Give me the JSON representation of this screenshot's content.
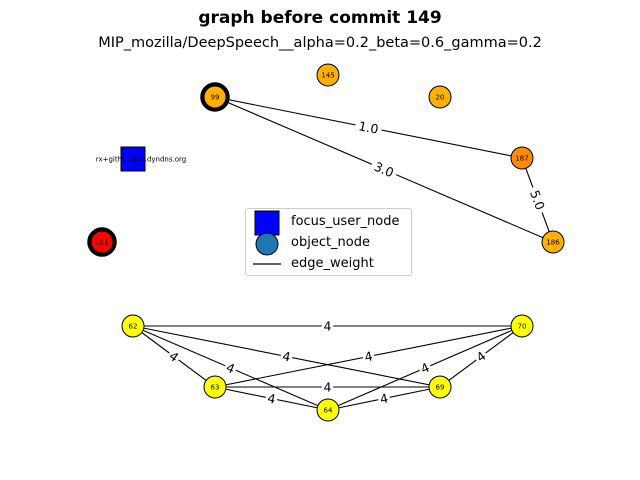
{
  "title": "graph before commit 149",
  "subtitle": "MIP_mozilla/DeepSpeech__alpha=0.2_beta=0.6_gamma=0.2",
  "colors": {
    "focus_user": "#0000ff",
    "object_node": "#1f77b4",
    "red": "#ff0000",
    "orange": "#ff8c00",
    "amber": "#ffb000",
    "yellow": "#ffff00",
    "edge": "#000000",
    "highlight_ring": "#000000"
  },
  "legend": {
    "items": [
      {
        "label": "focus_user_node",
        "icon": "blue-square"
      },
      {
        "label": "object_node",
        "icon": "blue-circle"
      },
      {
        "label": "edge_weight",
        "icon": "black-line"
      }
    ]
  },
  "nodes": [
    {
      "id": "145",
      "label": "145",
      "fill": "#ffb000",
      "ring": false
    },
    {
      "id": "20",
      "label": "20",
      "fill": "#ffb000",
      "ring": false
    },
    {
      "id": "99",
      "label": "99",
      "fill": "#ffb000",
      "ring": true
    },
    {
      "id": "187",
      "label": "187",
      "fill": "#ff8c00",
      "ring": false
    },
    {
      "id": "186",
      "label": "186",
      "fill": "#ffb000",
      "ring": false
    },
    {
      "id": "161",
      "label": "161",
      "fill": "#ff0000",
      "ring": true
    },
    {
      "id": "62",
      "label": "62",
      "fill": "#ffff00",
      "ring": false
    },
    {
      "id": "70",
      "label": "70",
      "fill": "#ffff00",
      "ring": false
    },
    {
      "id": "63",
      "label": "63",
      "fill": "#ffff00",
      "ring": false
    },
    {
      "id": "69",
      "label": "69",
      "fill": "#ffff00",
      "ring": false
    },
    {
      "id": "64",
      "label": "64",
      "fill": "#ffff00",
      "ring": false
    }
  ],
  "focus_user": {
    "label": "rx+github@rx.dyndns.org"
  },
  "edges": [
    {
      "source": "99",
      "target": "187",
      "weight": "1.0"
    },
    {
      "source": "99",
      "target": "186",
      "weight": "3.0"
    },
    {
      "source": "187",
      "target": "186",
      "weight": "5.0"
    },
    {
      "source": "62",
      "target": "70",
      "weight": "4"
    },
    {
      "source": "62",
      "target": "63",
      "weight": "4"
    },
    {
      "source": "62",
      "target": "64",
      "weight": "4"
    },
    {
      "source": "62",
      "target": "69",
      "weight": "4"
    },
    {
      "source": "70",
      "target": "63",
      "weight": "4"
    },
    {
      "source": "70",
      "target": "64",
      "weight": "4"
    },
    {
      "source": "70",
      "target": "69",
      "weight": "4"
    },
    {
      "source": "63",
      "target": "69",
      "weight": "4"
    },
    {
      "source": "63",
      "target": "64",
      "weight": "4"
    },
    {
      "source": "64",
      "target": "69",
      "weight": "4"
    }
  ]
}
